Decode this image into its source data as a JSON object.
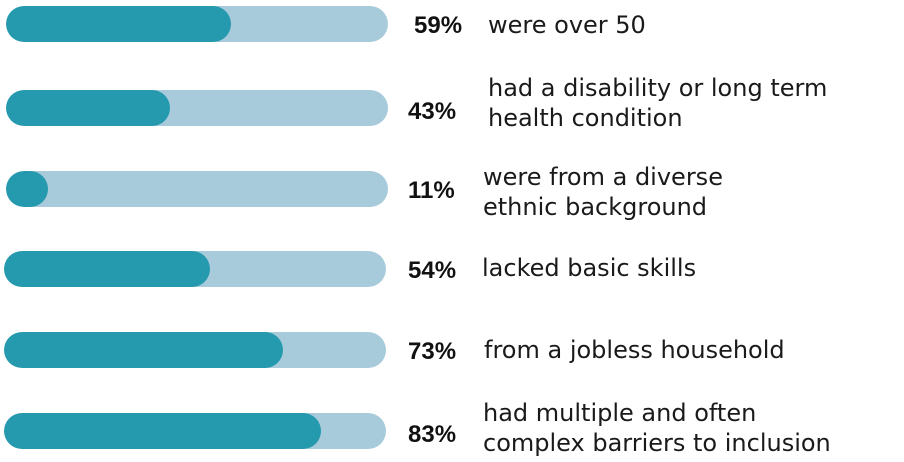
{
  "chart_data": {
    "type": "bar",
    "orientation": "horizontal",
    "max": 100,
    "colors": {
      "track": "#a7cbdb",
      "fill": "#2599ae",
      "text": "#111111"
    },
    "items": [
      {
        "value": 59,
        "pct_label": "59%",
        "label_lines": [
          "were over 50"
        ]
      },
      {
        "value": 43,
        "pct_label": "43%",
        "label_lines": [
          "had a disability or long term",
          "health condition"
        ]
      },
      {
        "value": 11,
        "pct_label": "11%",
        "label_lines": [
          "were from a diverse",
          "ethnic background"
        ]
      },
      {
        "value": 54,
        "pct_label": "54%",
        "label_lines": [
          "lacked basic skills"
        ]
      },
      {
        "value": 73,
        "pct_label": "73%",
        "label_lines": [
          "from a jobless household"
        ]
      },
      {
        "value": 83,
        "pct_label": "83%",
        "label_lines": [
          "had multiple and often",
          "complex barriers to inclusion"
        ]
      }
    ]
  }
}
